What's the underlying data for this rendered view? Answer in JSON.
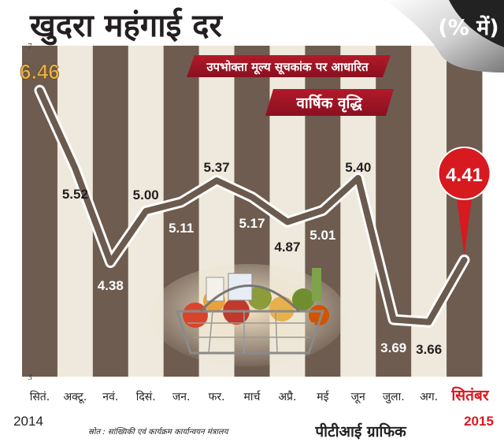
{
  "header": {
    "title": "खुदरा महंगाई दर",
    "unit": "(% में)",
    "subtitle_basis": "उपभोक्ता मूल्य सूचकांक पर आधारित",
    "subtitle_type": "वार्षिक वृद्धि"
  },
  "footer": {
    "source": "स्रोत : सांख्यिकी एवं कार्यक्रम  कार्यान्वयन मंत्रालय",
    "brand": "पीटीआई ग्राफिक",
    "year_start": "2014",
    "year_end": "2015"
  },
  "colors": {
    "line": "#6b5a4e",
    "column_dark": "#6d5c4f",
    "column_light": "#eee9dc",
    "title": "#231f20",
    "highlight": "#d71920",
    "first_value": "#e5b04a"
  },
  "chart_data": {
    "type": "line",
    "title": "खुदरा महंगाई दर",
    "xlabel": "",
    "ylabel": "",
    "ylim": [
      3,
      7
    ],
    "y_ticks": [
      "7",
      "3"
    ],
    "grid": false,
    "categories": [
      "सितं.",
      "अक्टू.",
      "नवं.",
      "दिसं.",
      "जन.",
      "फर.",
      "मार्च",
      "अप्रै.",
      "मई",
      "जून",
      "जुला.",
      "अग.",
      "सितंबर"
    ],
    "values": [
      6.46,
      5.52,
      4.38,
      5.0,
      5.11,
      5.37,
      5.17,
      4.87,
      5.01,
      5.4,
      3.69,
      3.66,
      4.41
    ],
    "value_labels": [
      "6.46",
      "5.52",
      "4.38",
      "5.00",
      "5.11",
      "5.37",
      "5.17",
      "4.87",
      "5.01",
      "5.40",
      "3.69",
      "3.66",
      "4.41"
    ],
    "highlight_last": true
  }
}
